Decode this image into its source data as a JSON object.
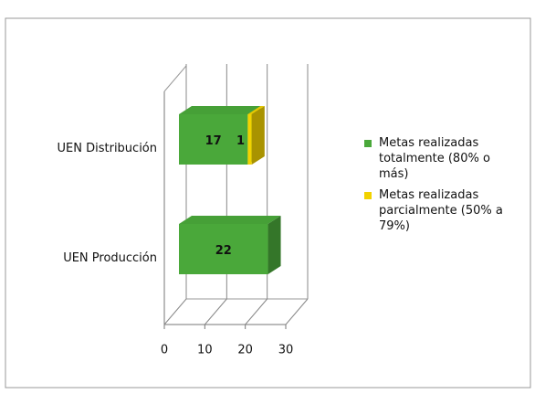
{
  "chart_data": {
    "type": "bar3d-horizontal-stacked",
    "categories": [
      "UEN Distribución",
      "UEN Producción"
    ],
    "series": [
      {
        "name": "Metas realizadas totalmente (80% o más)",
        "color": "#4aa83a",
        "values": [
          17,
          22
        ]
      },
      {
        "name": "Metas realizadas parcialmente (50% a 79%)",
        "color": "#f2d200",
        "values": [
          1,
          null
        ]
      }
    ],
    "xlim": [
      0,
      30
    ],
    "xticks": [
      0,
      10,
      20,
      30
    ],
    "legend": "right"
  }
}
